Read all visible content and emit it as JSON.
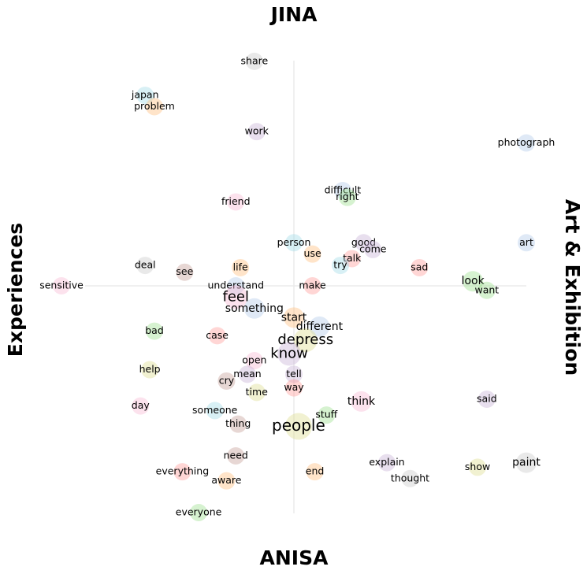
{
  "chart_data": {
    "type": "scatter",
    "axis_labels": {
      "top": "JINA",
      "bottom": "ANISA",
      "left": "Experiences",
      "right": "Art & Exhibition"
    },
    "xlim": [
      -1,
      1
    ],
    "ylim": [
      -1,
      1
    ],
    "grid": "center-cross",
    "palette": [
      "#aec7e8",
      "#ffbb78",
      "#98df8a",
      "#ff9896",
      "#c5b0d5",
      "#c49c94",
      "#f7b6d2",
      "#c7c7c7",
      "#dbdb8d",
      "#9edae5"
    ],
    "points": [
      {
        "word": "share",
        "x": -0.17,
        "y": 0.99,
        "weight": 1,
        "color": "#c7c7c7"
      },
      {
        "word": "japan",
        "x": -0.64,
        "y": 0.84,
        "weight": 1,
        "color": "#9edae5"
      },
      {
        "word": "problem",
        "x": -0.6,
        "y": 0.79,
        "weight": 1,
        "color": "#ffbb78"
      },
      {
        "word": "work",
        "x": -0.16,
        "y": 0.68,
        "weight": 1,
        "color": "#c5b0d5"
      },
      {
        "word": "photograph",
        "x": 1.0,
        "y": 0.63,
        "weight": 1,
        "color": "#aec7e8"
      },
      {
        "word": "difficult",
        "x": 0.21,
        "y": 0.42,
        "weight": 1,
        "color": "#aec7e8"
      },
      {
        "word": "right",
        "x": 0.23,
        "y": 0.39,
        "weight": 1,
        "color": "#98df8a"
      },
      {
        "word": "friend",
        "x": -0.25,
        "y": 0.37,
        "weight": 1,
        "color": "#f7b6d2"
      },
      {
        "word": "person",
        "x": 0.0,
        "y": 0.19,
        "weight": 1,
        "color": "#9edae5"
      },
      {
        "word": "good",
        "x": 0.3,
        "y": 0.19,
        "weight": 1,
        "color": "#c5b0d5"
      },
      {
        "word": "come",
        "x": 0.34,
        "y": 0.16,
        "weight": 1,
        "color": "#c5b0d5"
      },
      {
        "word": "art",
        "x": 1.0,
        "y": 0.19,
        "weight": 1,
        "color": "#aec7e8"
      },
      {
        "word": "use",
        "x": 0.08,
        "y": 0.14,
        "weight": 1,
        "color": "#ffbb78"
      },
      {
        "word": "talk",
        "x": 0.25,
        "y": 0.12,
        "weight": 1,
        "color": "#ff9896"
      },
      {
        "word": "try",
        "x": 0.2,
        "y": 0.09,
        "weight": 1,
        "color": "#9edae5"
      },
      {
        "word": "deal",
        "x": -0.64,
        "y": 0.09,
        "weight": 1,
        "color": "#c7c7c7"
      },
      {
        "word": "see",
        "x": -0.47,
        "y": 0.06,
        "weight": 1,
        "color": "#c49c94"
      },
      {
        "word": "life",
        "x": -0.23,
        "y": 0.08,
        "weight": 1,
        "color": "#ffbb78"
      },
      {
        "word": "sad",
        "x": 0.54,
        "y": 0.08,
        "weight": 1,
        "color": "#ff9896"
      },
      {
        "word": "sensitive",
        "x": -1.0,
        "y": 0.0,
        "weight": 1,
        "color": "#f7b6d2"
      },
      {
        "word": "understand",
        "x": -0.25,
        "y": 0.0,
        "weight": 1,
        "color": "#aec7e8"
      },
      {
        "word": "make",
        "x": 0.08,
        "y": 0.0,
        "weight": 1,
        "color": "#ff9896"
      },
      {
        "word": "look",
        "x": 0.77,
        "y": 0.02,
        "weight": 2,
        "color": "#98df8a"
      },
      {
        "word": "want",
        "x": 0.83,
        "y": -0.02,
        "weight": 1,
        "color": "#98df8a"
      },
      {
        "word": "feel",
        "x": -0.25,
        "y": -0.05,
        "weight": 3,
        "color": "#f7b6d2"
      },
      {
        "word": "something",
        "x": -0.17,
        "y": -0.1,
        "weight": 2,
        "color": "#aec7e8"
      },
      {
        "word": "start",
        "x": 0.0,
        "y": -0.14,
        "weight": 2,
        "color": "#ffbb78"
      },
      {
        "word": "different",
        "x": 0.11,
        "y": -0.18,
        "weight": 2,
        "color": "#aec7e8"
      },
      {
        "word": "bad",
        "x": -0.6,
        "y": -0.2,
        "weight": 1,
        "color": "#98df8a"
      },
      {
        "word": "case",
        "x": -0.33,
        "y": -0.22,
        "weight": 1,
        "color": "#ff9896"
      },
      {
        "word": "depress",
        "x": 0.05,
        "y": -0.24,
        "weight": 3,
        "color": "#dbdb8d"
      },
      {
        "word": "know",
        "x": -0.02,
        "y": -0.3,
        "weight": 3,
        "color": "#c5b0d5"
      },
      {
        "word": "open",
        "x": -0.17,
        "y": -0.33,
        "weight": 1,
        "color": "#f7b6d2"
      },
      {
        "word": "help",
        "x": -0.62,
        "y": -0.37,
        "weight": 1,
        "color": "#dbdb8d"
      },
      {
        "word": "tell",
        "x": 0.0,
        "y": -0.39,
        "weight": 1,
        "color": "#c5b0d5"
      },
      {
        "word": "mean",
        "x": -0.2,
        "y": -0.39,
        "weight": 1,
        "color": "#c5b0d5"
      },
      {
        "word": "cry",
        "x": -0.29,
        "y": -0.42,
        "weight": 1,
        "color": "#c49c94"
      },
      {
        "word": "way",
        "x": 0.0,
        "y": -0.45,
        "weight": 1,
        "color": "#ff9896"
      },
      {
        "word": "time",
        "x": -0.16,
        "y": -0.47,
        "weight": 1,
        "color": "#dbdb8d"
      },
      {
        "word": "day",
        "x": -0.66,
        "y": -0.53,
        "weight": 1,
        "color": "#f7b6d2"
      },
      {
        "word": "think",
        "x": 0.29,
        "y": -0.51,
        "weight": 2,
        "color": "#f7b6d2"
      },
      {
        "word": "said",
        "x": 0.83,
        "y": -0.5,
        "weight": 1,
        "color": "#c5b0d5"
      },
      {
        "word": "someone",
        "x": -0.34,
        "y": -0.55,
        "weight": 1,
        "color": "#9edae5"
      },
      {
        "word": "stuff",
        "x": 0.14,
        "y": -0.57,
        "weight": 1,
        "color": "#98df8a"
      },
      {
        "word": "thing",
        "x": -0.24,
        "y": -0.61,
        "weight": 1,
        "color": "#c49c94"
      },
      {
        "word": "people",
        "x": 0.02,
        "y": -0.62,
        "weight": 4,
        "color": "#dbdb8d"
      },
      {
        "word": "need",
        "x": -0.25,
        "y": -0.75,
        "weight": 1,
        "color": "#c49c94"
      },
      {
        "word": "explain",
        "x": 0.4,
        "y": -0.78,
        "weight": 1,
        "color": "#c5b0d5"
      },
      {
        "word": "paint",
        "x": 1.0,
        "y": -0.78,
        "weight": 2,
        "color": "#c7c7c7"
      },
      {
        "word": "show",
        "x": 0.79,
        "y": -0.8,
        "weight": 1,
        "color": "#dbdb8d"
      },
      {
        "word": "everything",
        "x": -0.48,
        "y": -0.82,
        "weight": 1,
        "color": "#ff9896"
      },
      {
        "word": "end",
        "x": 0.09,
        "y": -0.82,
        "weight": 1,
        "color": "#ffbb78"
      },
      {
        "word": "thought",
        "x": 0.5,
        "y": -0.85,
        "weight": 1,
        "color": "#c7c7c7"
      },
      {
        "word": "aware",
        "x": -0.29,
        "y": -0.86,
        "weight": 1,
        "color": "#ffbb78"
      },
      {
        "word": "everyone",
        "x": -0.41,
        "y": -1.0,
        "weight": 1,
        "color": "#98df8a"
      }
    ]
  }
}
